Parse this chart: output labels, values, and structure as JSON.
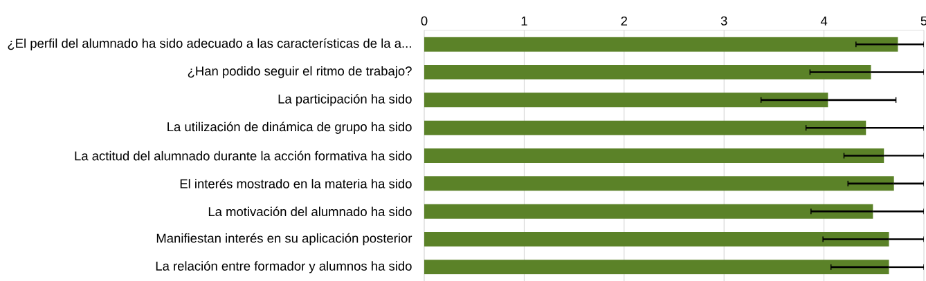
{
  "chart_data": {
    "type": "bar",
    "orientation": "horizontal",
    "categories": [
      "¿El perfil del alumnado ha sido adecuado a las características de la a...",
      "¿Han podido seguir el ritmo de trabajo?",
      "La participación ha sido",
      "La utilización de dinámica de grupo ha sido",
      "La actitud del alumnado durante la acción formativa ha sido",
      "El interés mostrado en la materia ha sido",
      "La motivación del alumnado ha sido",
      "Manifiestan interés en su aplicación posterior",
      "La relación entre formador y alumnos ha sido"
    ],
    "values": [
      4.74,
      4.47,
      4.04,
      4.42,
      4.6,
      4.7,
      4.49,
      4.65,
      4.65
    ],
    "errors": [
      [
        4.32,
        5
      ],
      [
        3.86,
        5
      ],
      [
        3.37,
        4.72
      ],
      [
        3.82,
        5
      ],
      [
        4.2,
        5
      ],
      [
        4.24,
        5
      ],
      [
        3.87,
        5
      ],
      [
        3.99,
        5
      ],
      [
        4.07,
        5
      ]
    ],
    "color": "#5b8228",
    "xlim": [
      0,
      5
    ],
    "xticks": [
      0,
      1,
      2,
      3,
      4,
      5
    ],
    "grid": "x"
  }
}
